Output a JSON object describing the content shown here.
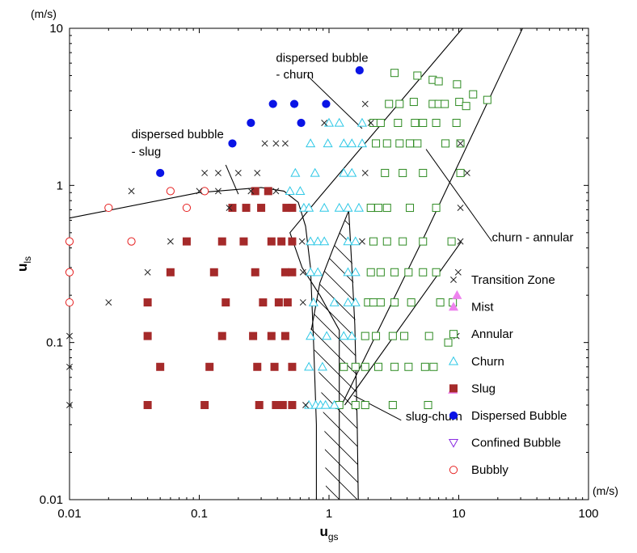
{
  "chart_data": {
    "type": "scatter",
    "x_scale": "log",
    "y_scale": "log",
    "xlim": [
      0.01,
      100
    ],
    "ylim": [
      0.01,
      10
    ],
    "x_ticks": [
      0.01,
      0.1,
      1,
      10,
      100
    ],
    "y_ticks": [
      0.01,
      0.1,
      1,
      10
    ],
    "x_tick_labels": [
      "0.01",
      "0.1",
      "1",
      "10",
      "100"
    ],
    "y_tick_labels": [
      "0.01",
      "0.1",
      "1",
      "10"
    ],
    "xlabel_main": "u",
    "xlabel_sub": "gs",
    "ylabel_main": "u",
    "ylabel_sub": "ls",
    "x_unit": "(m/s)",
    "y_unit": "(m/s)",
    "grid": false,
    "legend_position": "lower-right",
    "colors": {
      "transition": "#222222",
      "mist": "#ee82ee",
      "annular": "#2e8b22",
      "churn": "#2ec8e6",
      "slug": "#a52a2a",
      "dispersed": "#0a14e6",
      "confined": "#8a2be2",
      "bubbly": "#e62020",
      "line": "#000000"
    },
    "series": [
      {
        "name": "Transition Zone",
        "marker": "x",
        "color": "#222222",
        "points": [
          [
            0.01,
            0.11
          ],
          [
            0.01,
            0.07
          ],
          [
            0.01,
            0.04
          ],
          [
            0.02,
            0.18
          ],
          [
            0.03,
            0.92
          ],
          [
            0.04,
            0.28
          ],
          [
            0.06,
            0.44
          ],
          [
            0.11,
            1.2
          ],
          [
            0.1,
            0.92
          ],
          [
            0.14,
            1.2
          ],
          [
            0.14,
            0.92
          ],
          [
            0.17,
            0.72
          ],
          [
            0.2,
            1.2
          ],
          [
            0.25,
            0.92
          ],
          [
            0.28,
            1.2
          ],
          [
            0.32,
            1.85
          ],
          [
            0.39,
            1.85
          ],
          [
            0.39,
            0.92
          ],
          [
            0.46,
            1.85
          ],
          [
            0.63,
            0.28
          ],
          [
            0.63,
            0.18
          ],
          [
            0.66,
            0.04
          ],
          [
            0.62,
            0.44
          ],
          [
            0.92,
            2.5
          ],
          [
            1.9,
            3.3
          ],
          [
            1.9,
            1.2
          ],
          [
            1.8,
            0.44
          ],
          [
            2.1,
            2.5
          ],
          [
            9.6,
            0.11
          ],
          [
            10.3,
            1.85
          ],
          [
            10.3,
            0.72
          ],
          [
            10.3,
            0.44
          ],
          [
            9.9,
            0.28
          ],
          [
            11.6,
            1.2
          ]
        ]
      },
      {
        "name": "Mist",
        "marker": "triangle-up-filled",
        "color": "#ee82ee",
        "points": [
          [
            9.7,
            0.2
          ],
          [
            9.0,
            0.05
          ]
        ]
      },
      {
        "name": "Annular",
        "marker": "square-open",
        "color": "#2e8b22",
        "points": [
          [
            3.2,
            5.2
          ],
          [
            4.8,
            5.0
          ],
          [
            6.3,
            4.7
          ],
          [
            7.0,
            4.6
          ],
          [
            9.7,
            4.4
          ],
          [
            2.9,
            3.3
          ],
          [
            3.5,
            3.3
          ],
          [
            4.5,
            3.4
          ],
          [
            6.3,
            3.3
          ],
          [
            7.0,
            3.3
          ],
          [
            7.8,
            3.3
          ],
          [
            10.1,
            3.4
          ],
          [
            11.4,
            3.2
          ],
          [
            12.9,
            3.8
          ],
          [
            16.6,
            3.5
          ],
          [
            2.2,
            2.5
          ],
          [
            2.5,
            2.5
          ],
          [
            3.4,
            2.5
          ],
          [
            4.6,
            2.5
          ],
          [
            5.3,
            2.5
          ],
          [
            6.7,
            2.5
          ],
          [
            9.6,
            2.5
          ],
          [
            2.3,
            1.85
          ],
          [
            2.8,
            1.85
          ],
          [
            3.5,
            1.85
          ],
          [
            4.2,
            1.85
          ],
          [
            4.8,
            1.85
          ],
          [
            7.9,
            1.85
          ],
          [
            10.3,
            1.85
          ],
          [
            2.7,
            1.2
          ],
          [
            3.7,
            1.2
          ],
          [
            5.3,
            1.2
          ],
          [
            10.3,
            1.2
          ],
          [
            2.1,
            0.72
          ],
          [
            2.4,
            0.72
          ],
          [
            2.8,
            0.72
          ],
          [
            4.2,
            0.72
          ],
          [
            6.7,
            0.72
          ],
          [
            2.2,
            0.44
          ],
          [
            2.8,
            0.44
          ],
          [
            3.7,
            0.44
          ],
          [
            5.3,
            0.44
          ],
          [
            8.8,
            0.44
          ],
          [
            2.1,
            0.28
          ],
          [
            2.5,
            0.28
          ],
          [
            3.2,
            0.28
          ],
          [
            4.1,
            0.28
          ],
          [
            5.3,
            0.28
          ],
          [
            6.7,
            0.28
          ],
          [
            2.0,
            0.18
          ],
          [
            2.2,
            0.18
          ],
          [
            2.5,
            0.18
          ],
          [
            3.2,
            0.18
          ],
          [
            4.3,
            0.18
          ],
          [
            7.2,
            0.18
          ],
          [
            9.0,
            0.18
          ],
          [
            1.9,
            0.11
          ],
          [
            2.3,
            0.11
          ],
          [
            3.1,
            0.11
          ],
          [
            3.8,
            0.11
          ],
          [
            5.9,
            0.11
          ],
          [
            8.3,
            0.1
          ],
          [
            1.3,
            0.07
          ],
          [
            1.6,
            0.07
          ],
          [
            1.9,
            0.07
          ],
          [
            2.4,
            0.07
          ],
          [
            3.2,
            0.07
          ],
          [
            4.1,
            0.07
          ],
          [
            5.5,
            0.07
          ],
          [
            6.4,
            0.07
          ],
          [
            1.2,
            0.04
          ],
          [
            1.6,
            0.04
          ],
          [
            1.9,
            0.04
          ],
          [
            3.1,
            0.04
          ],
          [
            5.8,
            0.04
          ]
        ]
      },
      {
        "name": "Churn",
        "marker": "triangle-up-open",
        "color": "#2ec8e6",
        "points": [
          [
            1.0,
            2.5
          ],
          [
            1.2,
            2.5
          ],
          [
            1.8,
            2.5
          ],
          [
            0.72,
            1.85
          ],
          [
            0.98,
            1.85
          ],
          [
            1.3,
            1.85
          ],
          [
            1.5,
            1.85
          ],
          [
            1.8,
            1.85
          ],
          [
            0.55,
            1.2
          ],
          [
            0.78,
            1.2
          ],
          [
            1.3,
            1.2
          ],
          [
            1.5,
            1.2
          ],
          [
            0.5,
            0.92
          ],
          [
            0.6,
            0.92
          ],
          [
            0.64,
            0.72
          ],
          [
            0.7,
            0.72
          ],
          [
            0.92,
            0.72
          ],
          [
            1.2,
            0.72
          ],
          [
            1.4,
            0.72
          ],
          [
            1.7,
            0.72
          ],
          [
            0.72,
            0.44
          ],
          [
            0.82,
            0.44
          ],
          [
            0.92,
            0.44
          ],
          [
            1.4,
            0.44
          ],
          [
            1.6,
            0.44
          ],
          [
            0.72,
            0.28
          ],
          [
            0.82,
            0.28
          ],
          [
            1.4,
            0.28
          ],
          [
            1.6,
            0.28
          ],
          [
            0.76,
            0.18
          ],
          [
            1.1,
            0.18
          ],
          [
            1.4,
            0.18
          ],
          [
            1.6,
            0.18
          ],
          [
            0.72,
            0.11
          ],
          [
            0.96,
            0.11
          ],
          [
            1.3,
            0.11
          ],
          [
            1.5,
            0.11
          ],
          [
            0.7,
            0.07
          ],
          [
            0.89,
            0.07
          ],
          [
            0.7,
            0.04
          ],
          [
            0.79,
            0.04
          ],
          [
            0.86,
            0.04
          ],
          [
            0.94,
            0.04
          ],
          [
            1.1,
            0.04
          ]
        ]
      },
      {
        "name": "Slug",
        "marker": "square-filled",
        "color": "#a52a2a",
        "points": [
          [
            0.27,
            0.92
          ],
          [
            0.34,
            0.92
          ],
          [
            0.18,
            0.72
          ],
          [
            0.23,
            0.72
          ],
          [
            0.3,
            0.72
          ],
          [
            0.47,
            0.72
          ],
          [
            0.52,
            0.72
          ],
          [
            0.08,
            0.44
          ],
          [
            0.15,
            0.44
          ],
          [
            0.22,
            0.44
          ],
          [
            0.36,
            0.44
          ],
          [
            0.43,
            0.44
          ],
          [
            0.52,
            0.44
          ],
          [
            0.06,
            0.28
          ],
          [
            0.13,
            0.28
          ],
          [
            0.27,
            0.28
          ],
          [
            0.46,
            0.28
          ],
          [
            0.52,
            0.28
          ],
          [
            0.04,
            0.18
          ],
          [
            0.16,
            0.18
          ],
          [
            0.31,
            0.18
          ],
          [
            0.41,
            0.18
          ],
          [
            0.48,
            0.18
          ],
          [
            0.04,
            0.11
          ],
          [
            0.15,
            0.11
          ],
          [
            0.26,
            0.11
          ],
          [
            0.36,
            0.11
          ],
          [
            0.46,
            0.11
          ],
          [
            0.05,
            0.07
          ],
          [
            0.12,
            0.07
          ],
          [
            0.28,
            0.07
          ],
          [
            0.38,
            0.07
          ],
          [
            0.52,
            0.07
          ],
          [
            0.04,
            0.04
          ],
          [
            0.11,
            0.04
          ],
          [
            0.29,
            0.04
          ],
          [
            0.39,
            0.04
          ],
          [
            0.44,
            0.04
          ],
          [
            0.52,
            0.04
          ]
        ]
      },
      {
        "name": "Dispersed Bubble",
        "marker": "circle-filled",
        "color": "#0a14e6",
        "points": [
          [
            1.72,
            5.4
          ],
          [
            0.37,
            3.3
          ],
          [
            0.54,
            3.3
          ],
          [
            0.95,
            3.3
          ],
          [
            0.25,
            2.5
          ],
          [
            0.61,
            2.5
          ],
          [
            0.18,
            1.85
          ],
          [
            0.05,
            1.2
          ]
        ]
      },
      {
        "name": "Confined Bubble",
        "marker": "triangle-down-open",
        "color": "#8a2be2",
        "points": []
      },
      {
        "name": "Bubbly",
        "marker": "circle-open",
        "color": "#e62020",
        "points": [
          [
            0.06,
            0.92
          ],
          [
            0.11,
            0.92
          ],
          [
            0.02,
            0.72
          ],
          [
            0.08,
            0.72
          ],
          [
            0.01,
            0.44
          ],
          [
            0.03,
            0.44
          ],
          [
            0.01,
            0.28
          ],
          [
            0.01,
            0.18
          ]
        ]
      }
    ],
    "boundary_lines": [
      [
        [
          0.01,
          0.62
        ],
        [
          0.1,
          0.9
        ],
        [
          0.3,
          0.97
        ],
        [
          0.45,
          0.92
        ],
        [
          0.58,
          0.78
        ],
        [
          0.66,
          0.55
        ],
        [
          0.72,
          0.3
        ],
        [
          0.76,
          0.1
        ],
        [
          0.8,
          0.03
        ],
        [
          0.8,
          0.01
        ]
      ],
      [
        [
          0.82,
          0.82
        ],
        [
          0.5,
          0.5
        ],
        [
          0.62,
          0.3
        ],
        [
          0.85,
          0.2
        ],
        [
          1.2,
          0.12
        ],
        [
          1.2,
          0.01
        ]
      ],
      [
        [
          0.73,
          0.12
        ],
        [
          0.85,
          0.24
        ],
        [
          1.08,
          0.4
        ],
        [
          1.42,
          0.69
        ],
        [
          1.5,
          0.3
        ],
        [
          1.58,
          0.13
        ],
        [
          1.65,
          0.03
        ],
        [
          1.68,
          0.01
        ]
      ],
      [
        [
          0.82,
          0.82
        ],
        [
          10.7,
          10.0
        ]
      ],
      [
        [
          1.32,
          0.04
        ],
        [
          10.5,
          0.44
        ]
      ],
      [
        [
          1.25,
          0.04
        ],
        [
          5.2,
          0.44
        ],
        [
          31,
          10.0
        ]
      ]
    ],
    "hatch_region": [
      [
        0.72,
        0.12
      ],
      [
        0.85,
        0.24
      ],
      [
        1.42,
        0.69
      ],
      [
        1.52,
        0.3
      ],
      [
        1.6,
        0.13
      ],
      [
        1.65,
        0.03
      ],
      [
        1.68,
        0.01
      ],
      [
        0.95,
        0.01
      ],
      [
        0.92,
        0.03
      ],
      [
        0.85,
        0.06
      ]
    ],
    "annotations": [
      {
        "text": "dispersed bubble",
        "x": 0.39,
        "y": 6.1
      },
      {
        "text": "- churn",
        "x": 0.39,
        "y": 4.8
      },
      {
        "text": "dispersed bubble",
        "x": 0.03,
        "y": 2.0
      },
      {
        "text": "- slug",
        "x": 0.03,
        "y": 1.55
      },
      {
        "text": "churn - annular",
        "x": 18,
        "y": 0.44
      },
      {
        "text": "slug-churn",
        "x": 3.9,
        "y": 0.032
      }
    ]
  }
}
